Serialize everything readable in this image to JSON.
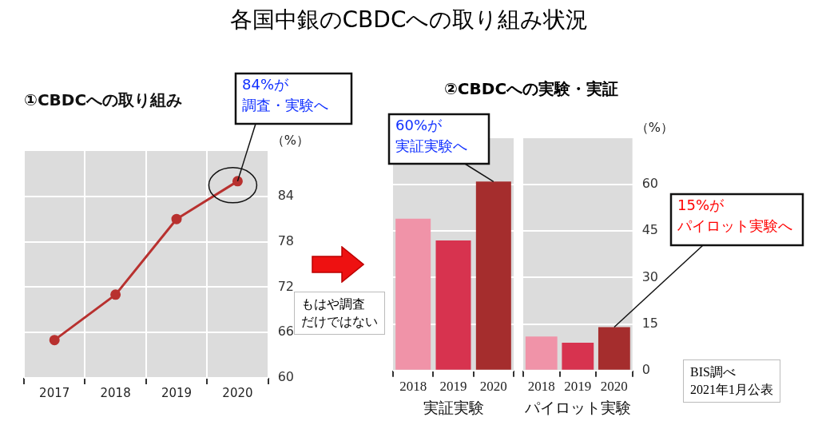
{
  "chart_data": [
    {
      "type": "other",
      "title": "各国中銀のCBDCへの取り組み状況",
      "annotations": [
        "もはや調査だけではない",
        "BIS調べ2021年1月公表"
      ]
    },
    {
      "type": "line",
      "title": "①CBDCへの取り組み",
      "ylabel": "（%）",
      "categories": [
        "2017",
        "2018",
        "2019",
        "2020"
      ],
      "series": [
        {
          "color": "#b8312f",
          "values": [
            65,
            71,
            81,
            86
          ]
        }
      ],
      "ylim": [
        60,
        90
      ],
      "yticks": [
        60,
        66,
        72,
        78,
        84
      ],
      "grid": true,
      "marker": "circle",
      "line_style": "solid",
      "annotations": [
        {
          "text": "84%が調査・実験へ",
          "x": "2020",
          "y": 86
        }
      ]
    },
    {
      "type": "bar",
      "title": "②CBDCへの実験・実証",
      "xlabel": "実証実験",
      "categories": [
        "2018",
        "2019",
        "2020"
      ],
      "values": [
        49,
        42,
        61
      ],
      "colors": [
        "#f093a8",
        "#d7334f",
        "#a52d2d"
      ],
      "ylim": [
        0,
        75
      ],
      "yticks": [
        0,
        15,
        30,
        45,
        60
      ],
      "grid": "y",
      "tick_labels": "x",
      "annotations": [
        {
          "text": "60%が実証実験へ",
          "x": "2020",
          "y": 61
        }
      ]
    },
    {
      "type": "bar",
      "xlabel": "パイロット実験",
      "ylabel": "（%）",
      "categories": [
        "2018",
        "2019",
        "2020"
      ],
      "values": [
        11,
        9,
        14
      ],
      "colors": [
        "#f093a8",
        "#d7334f",
        "#a52d2d"
      ],
      "ylim": [
        0,
        75
      ],
      "yticks": [
        0,
        15,
        30,
        45,
        60
      ],
      "grid": "y",
      "annotations": [
        {
          "text": "15%がパイロット実験へ",
          "x": "2020",
          "y": 14
        }
      ]
    }
  ]
}
